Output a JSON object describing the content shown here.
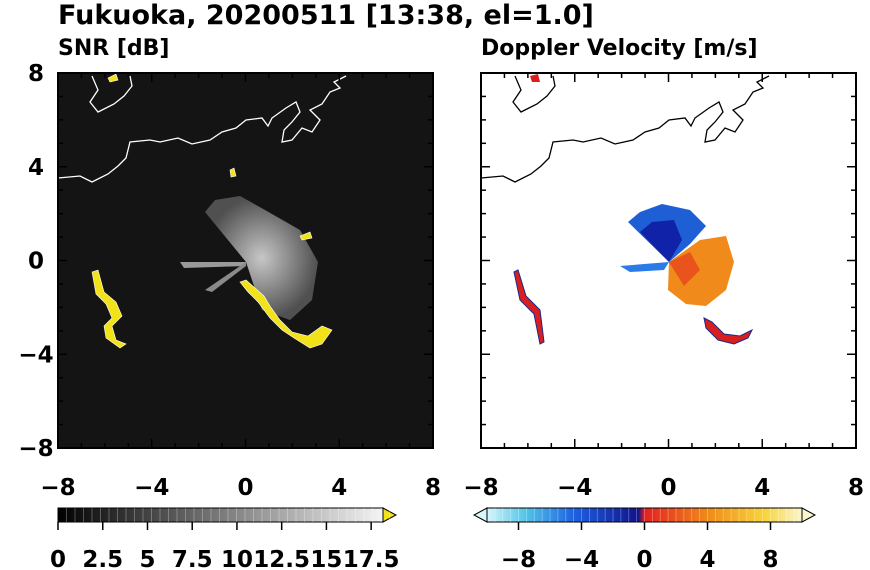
{
  "title": "Fukuoka, 20200511 [13:38, el=1.0]",
  "chart_data": [
    {
      "type": "heatmap",
      "title": "SNR [dB]",
      "xlim": [
        -8,
        8
      ],
      "ylim": [
        -8,
        8
      ],
      "x_ticks": [
        "−8",
        "−4",
        "0",
        "4",
        "8"
      ],
      "y_ticks": [
        "8",
        "4",
        "0",
        "−4",
        "−8"
      ],
      "colorbar": {
        "range": [
          0,
          19
        ],
        "tick_labels": [
          "0",
          "2.5",
          "5",
          "7.5",
          "10",
          "12.5",
          "15",
          "17.5"
        ],
        "tick_values": [
          0,
          2.5,
          5,
          7.5,
          10,
          12.5,
          15,
          17.5
        ],
        "extend": "max",
        "palette": "black-to-white grayscale, yellow above max"
      },
      "colors": {
        "background": "#141414",
        "echo": "#cccccc",
        "high": "#f2e21a"
      }
    },
    {
      "type": "heatmap",
      "title": "Doppler Velocity [m/s]",
      "xlim": [
        -8,
        8
      ],
      "ylim": [
        -8,
        8
      ],
      "x_ticks": [
        "−8",
        "−4",
        "0",
        "4",
        "8"
      ],
      "y_ticks": [
        "8",
        "4",
        "0",
        "−4",
        "−8"
      ],
      "colorbar": {
        "range": [
          -10,
          10
        ],
        "tick_labels": [
          "−8",
          "−4",
          "0",
          "4",
          "8"
        ],
        "tick_values": [
          -8,
          -4,
          0,
          4,
          8
        ],
        "extend": "both",
        "palette": "cyan-blue for negative, red-orange-yellow for positive"
      },
      "colors": {
        "approaching": "#1f5fd6",
        "receding": "#f08a1a"
      }
    }
  ]
}
